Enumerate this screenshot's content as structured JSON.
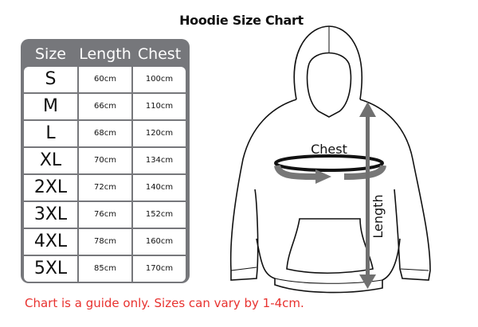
{
  "title": "Hoodie Size Chart",
  "table": {
    "headers": [
      "Size",
      "Length",
      "Chest"
    ],
    "rows": [
      [
        "S",
        "60cm",
        "100cm"
      ],
      [
        "M",
        "66cm",
        "110cm"
      ],
      [
        "L",
        "68cm",
        "120cm"
      ],
      [
        "XL",
        "70cm",
        "134cm"
      ],
      [
        "2XL",
        "72cm",
        "140cm"
      ],
      [
        "3XL",
        "76cm",
        "152cm"
      ],
      [
        "4XL",
        "78cm",
        "160cm"
      ],
      [
        "5XL",
        "85cm",
        "170cm"
      ]
    ]
  },
  "diagram": {
    "chest_label": "Chest",
    "length_label": "Length",
    "arrow_color": "#707070"
  },
  "note": "Chart is a guide only. Sizes can vary by 1-4cm.",
  "colors": {
    "table_bg": "#76777b",
    "note": "#e8322f"
  }
}
